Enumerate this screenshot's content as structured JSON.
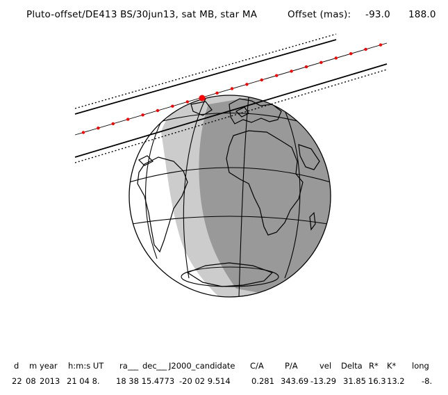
{
  "header": {
    "title": "Pluto-offset/DE413 BS/30jun13, sat MB, star MA",
    "offset_label": "Offset (mas):",
    "offset_x": "-93.0",
    "offset_y": "188.0"
  },
  "table": {
    "headers": [
      "d",
      "m",
      "year",
      "h:m:s UT",
      "ra",
      "dec",
      "J2000_candidate",
      "C/A",
      "P/A",
      "vel",
      "Delta",
      "R*",
      "K*",
      "long"
    ],
    "values": [
      "22",
      "08",
      "2013",
      "21 04 8.",
      "18 38 15.4773",
      "-20 02 9.514",
      "0.281",
      "343.69",
      "-13.29",
      "31.85",
      "16.3",
      "13.2",
      "-8."
    ]
  },
  "colors": {
    "track": "#ff0000",
    "night": "#999999",
    "twilight": "#cccccc",
    "ink": "#000000"
  }
}
